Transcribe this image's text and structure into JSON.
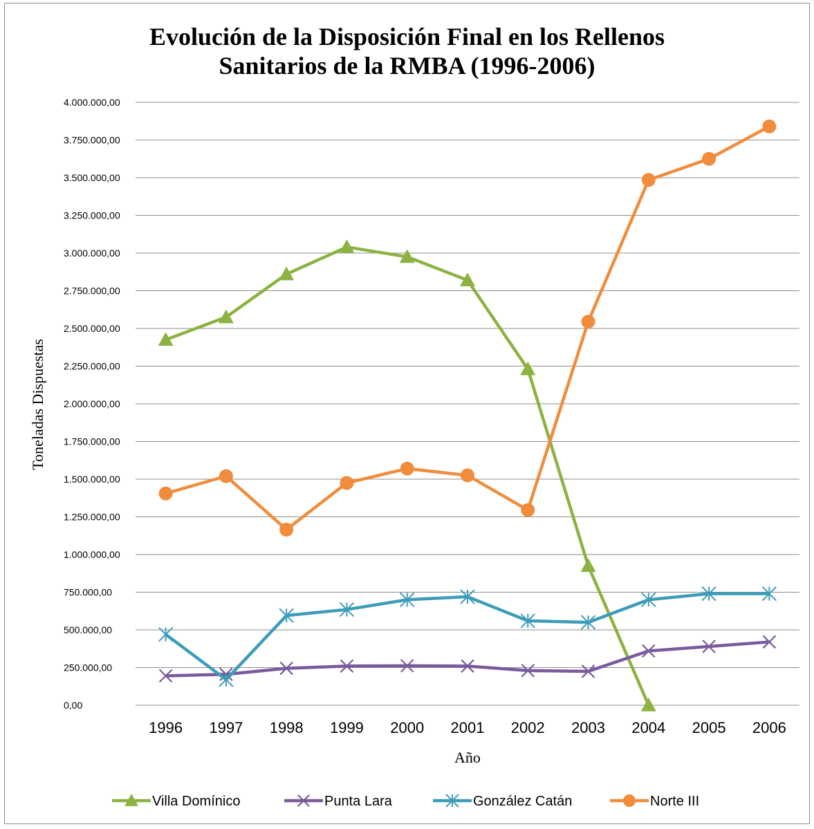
{
  "chart_data": {
    "type": "line",
    "title_lines": [
      "Evolución de la Disposición Final en los Rellenos",
      "Sanitarios de la RMBA (1996-2006)"
    ],
    "xlabel": "Año",
    "ylabel": "Toneladas Dispuestas",
    "categories": [
      "1996",
      "1997",
      "1998",
      "1999",
      "2000",
      "2001",
      "2002",
      "2003",
      "2004",
      "2005",
      "2006"
    ],
    "ylim": [
      0,
      4000000
    ],
    "yticks": [
      0,
      250000,
      500000,
      750000,
      1000000,
      1250000,
      1500000,
      1750000,
      2000000,
      2250000,
      2500000,
      2750000,
      3000000,
      3250000,
      3500000,
      3750000,
      4000000
    ],
    "ytick_labels": [
      "0,00",
      "250.000,00",
      "500.000,00",
      "750.000,00",
      "1.000.000,00",
      "1.250.000,00",
      "1.500.000,00",
      "1.750.000,00",
      "2.000.000,00",
      "2.250.000,00",
      "2.500.000,00",
      "2.750.000,00",
      "3.000.000,00",
      "3.250.000,00",
      "3.500.000,00",
      "3.750.000,00",
      "4.000.000,00"
    ],
    "grid": true,
    "legend_position": "bottom",
    "series": [
      {
        "name": "Villa Domínico",
        "color": "#8cb241",
        "marker": "triangle",
        "values": [
          2425000,
          2575000,
          2860000,
          3040000,
          2975000,
          2820000,
          2230000,
          925000,
          0,
          null,
          null
        ]
      },
      {
        "name": "Punta Lara",
        "color": "#7a5a9c",
        "marker": "x",
        "values": [
          195000,
          205000,
          245000,
          260000,
          262000,
          260000,
          230000,
          225000,
          360000,
          390000,
          420000
        ]
      },
      {
        "name": "González Catán",
        "color": "#3d9cb8",
        "marker": "asterisk",
        "values": [
          470000,
          170000,
          595000,
          635000,
          700000,
          720000,
          560000,
          550000,
          700000,
          740000,
          740000
        ]
      },
      {
        "name": "Norte III",
        "color": "#f08c3c",
        "marker": "circle",
        "values": [
          1405000,
          1520000,
          1165000,
          1475000,
          1570000,
          1525000,
          1295000,
          2545000,
          3485000,
          3625000,
          3840000
        ]
      }
    ]
  }
}
